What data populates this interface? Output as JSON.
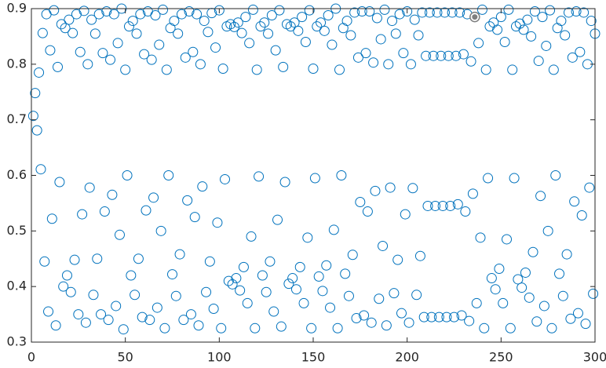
{
  "chart_data": {
    "type": "scatter",
    "x": [
      1,
      2,
      3,
      4,
      5,
      6,
      7,
      8,
      9,
      10,
      11,
      12,
      13,
      14,
      15,
      16,
      17,
      18,
      19,
      20,
      21,
      22,
      23,
      24,
      25,
      26,
      27,
      28,
      29,
      30,
      31,
      32,
      33,
      34,
      35,
      36,
      37,
      38,
      39,
      40,
      41,
      42,
      43,
      44,
      45,
      46,
      47,
      48,
      49,
      50,
      51,
      52,
      53,
      54,
      55,
      56,
      57,
      58,
      59,
      60,
      61,
      62,
      63,
      64,
      65,
      66,
      67,
      68,
      69,
      70,
      71,
      72,
      73,
      74,
      75,
      76,
      77,
      78,
      79,
      80,
      81,
      82,
      83,
      84,
      85,
      86,
      87,
      88,
      89,
      90,
      91,
      92,
      93,
      94,
      95,
      96,
      97,
      98,
      99,
      100,
      101,
      102,
      103,
      104,
      105,
      106,
      107,
      108,
      109,
      110,
      111,
      112,
      113,
      114,
      115,
      116,
      117,
      118,
      119,
      120,
      121,
      122,
      123,
      124,
      125,
      126,
      127,
      128,
      129,
      130,
      131,
      132,
      133,
      134,
      135,
      136,
      137,
      138,
      139,
      140,
      141,
      142,
      143,
      144,
      145,
      146,
      147,
      148,
      149,
      150,
      151,
      152,
      153,
      154,
      155,
      156,
      157,
      158,
      159,
      160,
      161,
      162,
      163,
      164,
      165,
      166,
      167,
      168,
      169,
      170,
      171,
      172,
      173,
      174,
      175,
      176,
      177,
      178,
      179,
      180,
      181,
      182,
      183,
      184,
      185,
      186,
      187,
      188,
      189,
      190,
      191,
      192,
      193,
      194,
      195,
      196,
      197,
      198,
      199,
      200,
      201,
      202,
      203,
      204,
      205,
      206,
      207,
      208,
      209,
      210,
      211,
      212,
      213,
      214,
      215,
      216,
      217,
      218,
      219,
      220,
      221,
      222,
      223,
      224,
      225,
      226,
      227,
      228,
      229,
      230,
      231,
      232,
      233,
      234,
      235,
      236,
      237,
      238,
      239,
      240,
      241,
      242,
      243,
      244,
      245,
      246,
      247,
      248,
      249,
      250,
      251,
      252,
      253,
      254,
      255,
      256,
      257,
      258,
      259,
      260,
      261,
      262,
      263,
      264,
      265,
      266,
      267,
      268,
      269,
      270,
      271,
      272,
      273,
      274,
      275,
      276,
      277,
      278,
      279,
      280,
      281,
      282,
      283,
      284,
      285,
      286,
      287,
      288,
      289,
      290,
      291,
      292,
      293,
      294,
      295,
      296,
      297,
      298,
      299,
      300
    ],
    "values": [
      0.707,
      0.748,
      0.681,
      0.785,
      0.611,
      0.856,
      0.445,
      0.89,
      0.355,
      0.825,
      0.522,
      0.897,
      0.33,
      0.795,
      0.588,
      0.872,
      0.4,
      0.865,
      0.42,
      0.88,
      0.39,
      0.856,
      0.448,
      0.89,
      0.35,
      0.822,
      0.53,
      0.896,
      0.335,
      0.8,
      0.578,
      0.88,
      0.385,
      0.855,
      0.45,
      0.89,
      0.35,
      0.82,
      0.535,
      0.895,
      0.34,
      0.808,
      0.565,
      0.89,
      0.365,
      0.838,
      0.493,
      0.9,
      0.323,
      0.79,
      0.6,
      0.868,
      0.42,
      0.878,
      0.385,
      0.855,
      0.45,
      0.89,
      0.345,
      0.818,
      0.537,
      0.895,
      0.34,
      0.808,
      0.56,
      0.888,
      0.362,
      0.835,
      0.5,
      0.898,
      0.325,
      0.79,
      0.6,
      0.865,
      0.422,
      0.878,
      0.383,
      0.855,
      0.458,
      0.89,
      0.34,
      0.812,
      0.555,
      0.895,
      0.35,
      0.822,
      0.525,
      0.89,
      0.33,
      0.8,
      0.58,
      0.878,
      0.39,
      0.858,
      0.445,
      0.892,
      0.36,
      0.83,
      0.515,
      0.897,
      0.325,
      0.792,
      0.593,
      0.868,
      0.41,
      0.872,
      0.404,
      0.867,
      0.415,
      0.875,
      0.393,
      0.856,
      0.435,
      0.885,
      0.37,
      0.838,
      0.49,
      0.898,
      0.325,
      0.79,
      0.598,
      0.868,
      0.42,
      0.875,
      0.39,
      0.855,
      0.445,
      0.888,
      0.355,
      0.825,
      0.52,
      0.897,
      0.328,
      0.795,
      0.588,
      0.872,
      0.405,
      0.868,
      0.415,
      0.875,
      0.395,
      0.86,
      0.435,
      0.885,
      0.37,
      0.84,
      0.488,
      0.897,
      0.325,
      0.792,
      0.595,
      0.868,
      0.418,
      0.875,
      0.392,
      0.86,
      0.438,
      0.888,
      0.362,
      0.835,
      0.502,
      0.9,
      0.325,
      0.79,
      0.6,
      0.865,
      0.423,
      0.878,
      0.383,
      0.852,
      0.457,
      0.893,
      0.343,
      0.812,
      0.552,
      0.895,
      0.348,
      0.82,
      0.535,
      0.895,
      0.335,
      0.803,
      0.572,
      0.883,
      0.378,
      0.845,
      0.473,
      0.898,
      0.33,
      0.8,
      0.578,
      0.878,
      0.388,
      0.855,
      0.448,
      0.89,
      0.352,
      0.82,
      0.53,
      0.895,
      0.335,
      0.8,
      0.577,
      0.88,
      0.385,
      0.852,
      0.455,
      0.893,
      0.345,
      0.815,
      0.545,
      0.893,
      0.345,
      0.815,
      0.545,
      0.893,
      0.345,
      0.815,
      0.545,
      0.893,
      0.345,
      0.815,
      0.545,
      0.893,
      0.345,
      0.815,
      0.548,
      0.893,
      0.348,
      0.818,
      0.535,
      0.89,
      0.338,
      0.805,
      0.567,
      0.885,
      0.37,
      0.838,
      0.488,
      0.898,
      0.325,
      0.79,
      0.595,
      0.868,
      0.415,
      0.875,
      0.395,
      0.862,
      0.432,
      0.885,
      0.37,
      0.84,
      0.485,
      0.898,
      0.325,
      0.79,
      0.595,
      0.868,
      0.413,
      0.873,
      0.398,
      0.862,
      0.425,
      0.88,
      0.38,
      0.85,
      0.462,
      0.895,
      0.337,
      0.806,
      0.563,
      0.885,
      0.365,
      0.833,
      0.5,
      0.897,
      0.325,
      0.79,
      0.6,
      0.865,
      0.423,
      0.878,
      0.383,
      0.852,
      0.458,
      0.893,
      0.342,
      0.812,
      0.553,
      0.895,
      0.352,
      0.822,
      0.528,
      0.893,
      0.333,
      0.8,
      0.578,
      0.878,
      0.387,
      0.855
    ],
    "color": "#0072bd",
    "highlighted_point": 235,
    "highlight_color": "#7f7f7f",
    "xlim": [
      0,
      300
    ],
    "xticks": [
      0,
      50,
      100,
      150,
      200,
      250,
      300
    ],
    "ylim": [
      0.3,
      0.9
    ],
    "yticks": [
      0.3,
      0.4,
      0.5,
      0.6,
      0.7,
      0.8,
      0.9
    ],
    "grid": false
  }
}
